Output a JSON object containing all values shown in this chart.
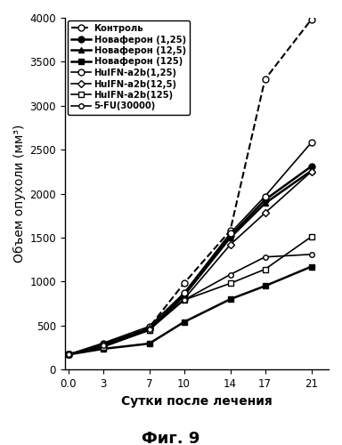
{
  "x": [
    0.0,
    3,
    7,
    10,
    14,
    17,
    21
  ],
  "series": [
    {
      "label": "Контроль",
      "y": [
        170,
        270,
        480,
        980,
        1580,
        3300,
        3980
      ],
      "linestyle": "--",
      "marker": "o",
      "markerfacecolor": "white",
      "linewidth": 1.5,
      "markersize": 5
    },
    {
      "label": "Новаферон (1,25)",
      "y": [
        170,
        265,
        460,
        850,
        1520,
        1930,
        2310
      ],
      "linestyle": "-",
      "marker": "o",
      "markerfacecolor": "black",
      "linewidth": 1.8,
      "markersize": 5
    },
    {
      "label": "Новаферон (12,5)",
      "y": [
        170,
        265,
        450,
        840,
        1500,
        1890,
        2260
      ],
      "linestyle": "-",
      "marker": "^",
      "markerfacecolor": "black",
      "linewidth": 1.8,
      "markersize": 5
    },
    {
      "label": "Новаферон (125)",
      "y": [
        170,
        235,
        295,
        540,
        800,
        950,
        1170
      ],
      "linestyle": "-",
      "marker": "s",
      "markerfacecolor": "black",
      "linewidth": 1.8,
      "markersize": 5
    },
    {
      "label": "HuIFN-a2b(1,25)",
      "y": [
        170,
        300,
        490,
        870,
        1550,
        1970,
        2580
      ],
      "linestyle": "-",
      "marker": "o",
      "markerfacecolor": "white",
      "linewidth": 1.2,
      "markersize": 5
    },
    {
      "label": "HuIFN-a2b(12,5)",
      "y": [
        170,
        290,
        470,
        800,
        1420,
        1780,
        2250
      ],
      "linestyle": "-",
      "marker": "D",
      "markerfacecolor": "white",
      "linewidth": 1.2,
      "markersize": 4
    },
    {
      "label": "HuIFN-a2b(125)",
      "y": [
        170,
        255,
        450,
        790,
        980,
        1140,
        1510
      ],
      "linestyle": "-",
      "marker": "s",
      "markerfacecolor": "white",
      "linewidth": 1.2,
      "markersize": 5
    },
    {
      "label": "5-FU(30000)",
      "y": [
        170,
        280,
        460,
        790,
        1080,
        1280,
        1310
      ],
      "linestyle": "-",
      "marker": "o",
      "markerfacecolor": "white",
      "linewidth": 1.2,
      "markersize": 4
    }
  ],
  "xlabel": "Сутки после лечения",
  "ylabel": "Объем опухоли (мм³)",
  "ylim": [
    0,
    4000
  ],
  "yticks": [
    0,
    500,
    1000,
    1500,
    2000,
    2500,
    3000,
    3500,
    4000
  ],
  "xticks": [
    0.0,
    3,
    7,
    10,
    14,
    17,
    21
  ],
  "title": "Фиг. 9",
  "bg_color": "#ffffff"
}
